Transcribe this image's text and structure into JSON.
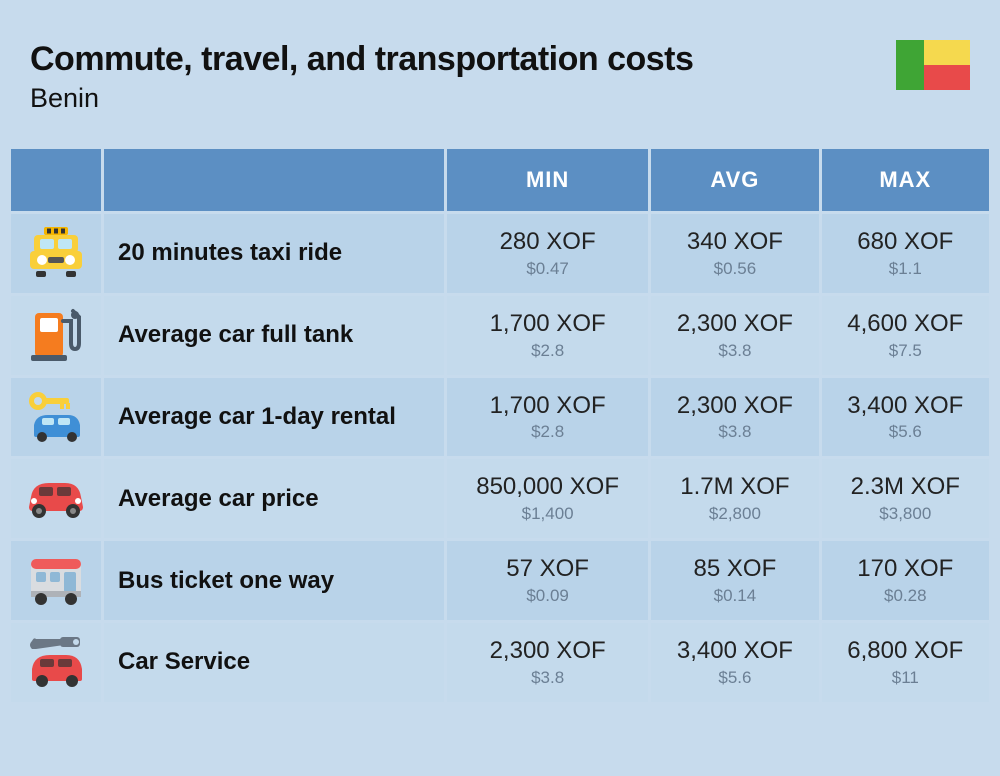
{
  "header": {
    "title": "Commute, travel, and transportation costs",
    "subtitle": "Benin"
  },
  "flag_colors": {
    "left": "#3fa535",
    "top": "#f5d94e",
    "bottom": "#e84a4a"
  },
  "columns": {
    "min": "MIN",
    "avg": "AVG",
    "max": "MAX"
  },
  "table_style": {
    "header_bg": "#5c8fc3",
    "header_text": "#ffffff",
    "row_odd_bg": "#b9d3e9",
    "row_even_bg": "#c4daec",
    "page_bg": "#c7dbed",
    "main_text_color": "#222222",
    "sub_text_color": "#6b7f94",
    "label_fontsize": 24,
    "main_fontsize": 24,
    "sub_fontsize": 17,
    "header_fontsize": 22
  },
  "rows": [
    {
      "icon": "taxi",
      "label": "20 minutes taxi ride",
      "min_main": "280 XOF",
      "min_sub": "$0.47",
      "avg_main": "340 XOF",
      "avg_sub": "$0.56",
      "max_main": "680 XOF",
      "max_sub": "$1.1"
    },
    {
      "icon": "fuel-pump",
      "label": "Average car full tank",
      "min_main": "1,700 XOF",
      "min_sub": "$2.8",
      "avg_main": "2,300 XOF",
      "avg_sub": "$3.8",
      "max_main": "4,600 XOF",
      "max_sub": "$7.5"
    },
    {
      "icon": "car-key",
      "label": "Average car 1-day rental",
      "min_main": "1,700 XOF",
      "min_sub": "$2.8",
      "avg_main": "2,300 XOF",
      "avg_sub": "$3.8",
      "max_main": "3,400 XOF",
      "max_sub": "$5.6"
    },
    {
      "icon": "car-red",
      "label": "Average car price",
      "min_main": "850,000 XOF",
      "min_sub": "$1,400",
      "avg_main": "1.7M XOF",
      "avg_sub": "$2,800",
      "max_main": "2.3M XOF",
      "max_sub": "$3,800"
    },
    {
      "icon": "bus",
      "label": "Bus ticket one way",
      "min_main": "57 XOF",
      "min_sub": "$0.09",
      "avg_main": "85 XOF",
      "avg_sub": "$0.14",
      "max_main": "170 XOF",
      "max_sub": "$0.28"
    },
    {
      "icon": "wrench-car",
      "label": "Car Service",
      "min_main": "2,300 XOF",
      "min_sub": "$3.8",
      "avg_main": "3,400 XOF",
      "avg_sub": "$5.6",
      "max_main": "6,800 XOF",
      "max_sub": "$11"
    }
  ]
}
